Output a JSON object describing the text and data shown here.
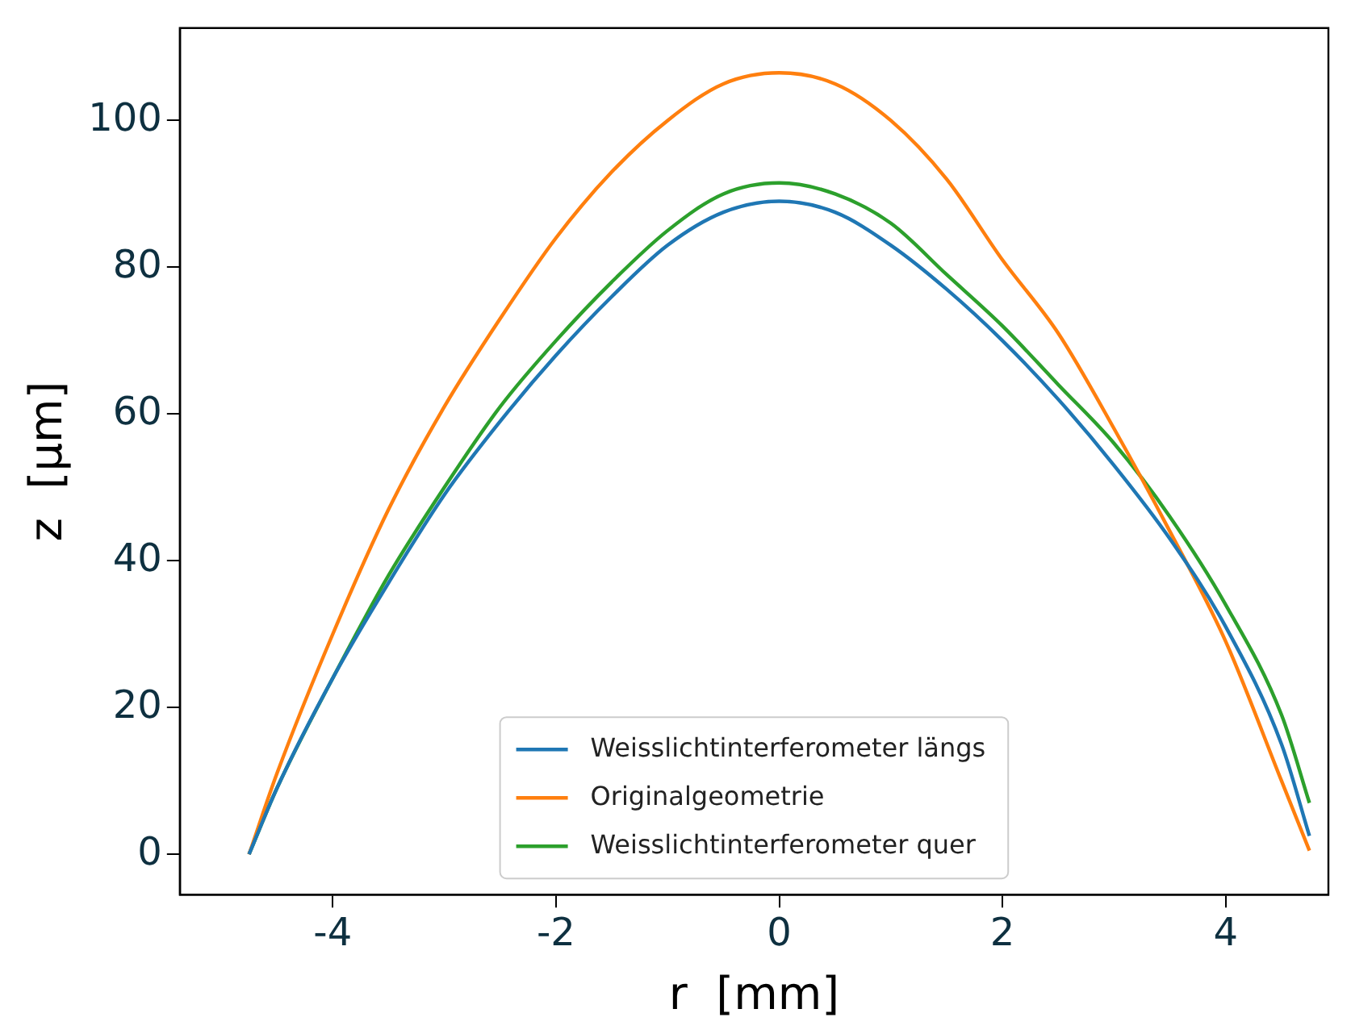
{
  "chart_data": {
    "type": "line",
    "xlabel": "r  [mm]",
    "ylabel": "z  [µm]",
    "xlim": [
      -5.37,
      4.92
    ],
    "ylim": [
      -5.5,
      112.6
    ],
    "xticks": [
      -4,
      -2,
      0,
      2,
      4
    ],
    "yticks": [
      0,
      20,
      40,
      60,
      80,
      100
    ],
    "grid": false,
    "legend": "bottom",
    "marker": "none",
    "line_style": "solid",
    "x": [
      -4.75,
      -4.5,
      -4,
      -3.5,
      -3,
      -2.5,
      -2,
      -1.5,
      -1,
      -0.5,
      0,
      0.5,
      1,
      1.5,
      2,
      2.5,
      3,
      3.5,
      4,
      4.5,
      4.75
    ],
    "series": [
      {
        "name": "Weisslichtinterferometer längs",
        "color": "#1f77b4",
        "values": [
          0,
          9,
          24,
          37,
          49,
          59,
          68,
          76,
          83,
          87.5,
          89,
          87.5,
          83,
          77,
          70,
          62,
          53,
          43,
          31,
          15,
          2.5
        ]
      },
      {
        "name": "Originalgeometrie",
        "color": "#ff7f0e",
        "values": [
          0,
          11,
          30,
          47,
          61,
          73,
          84,
          93,
          100,
          105,
          106.5,
          105,
          100,
          92,
          81,
          71,
          58,
          44,
          29,
          10,
          0.5
        ]
      },
      {
        "name": "Weisslichtinterferometer quer",
        "color": "#2ca02c",
        "values": [
          0,
          9,
          24,
          38,
          50,
          61,
          70,
          78,
          85,
          90,
          91.5,
          90,
          86,
          79,
          72,
          64,
          56,
          46,
          34,
          19,
          7
        ]
      }
    ]
  }
}
